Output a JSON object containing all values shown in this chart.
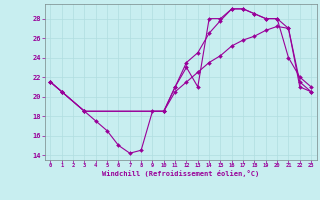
{
  "xlabel": "Windchill (Refroidissement éolien,°C)",
  "bg_color": "#c8eef0",
  "line_color": "#990099",
  "grid_color": "#b0dde0",
  "xlim": [
    -0.5,
    23.5
  ],
  "ylim": [
    13.5,
    29.5
  ],
  "xticks": [
    0,
    1,
    2,
    3,
    4,
    5,
    6,
    7,
    8,
    9,
    10,
    11,
    12,
    13,
    14,
    15,
    16,
    17,
    18,
    19,
    20,
    21,
    22,
    23
  ],
  "yticks": [
    14,
    16,
    18,
    20,
    22,
    24,
    26,
    28
  ],
  "line1_x": [
    0,
    1,
    3,
    4,
    5,
    6,
    7,
    8,
    9,
    10,
    11,
    12,
    13,
    14,
    15,
    16,
    17,
    18,
    19,
    20,
    21,
    22,
    23
  ],
  "line1_y": [
    21.5,
    20.5,
    18.5,
    17.5,
    16.5,
    15.0,
    14.2,
    14.5,
    18.5,
    18.5,
    21.0,
    23.0,
    21.0,
    28.0,
    28.0,
    29.0,
    29.0,
    28.5,
    28.0,
    28.0,
    24.0,
    22.0,
    21.0
  ],
  "line2_x": [
    0,
    1,
    3,
    10,
    11,
    12,
    13,
    14,
    15,
    16,
    17,
    18,
    19,
    20,
    21,
    22,
    23
  ],
  "line2_y": [
    21.5,
    20.5,
    18.5,
    18.5,
    21.0,
    23.5,
    24.5,
    26.5,
    27.8,
    29.0,
    29.0,
    28.5,
    28.0,
    28.0,
    27.0,
    21.5,
    20.5
  ],
  "line3_x": [
    0,
    1,
    3,
    10,
    11,
    12,
    13,
    14,
    15,
    16,
    17,
    18,
    19,
    20,
    21,
    22,
    23
  ],
  "line3_y": [
    21.5,
    20.5,
    18.5,
    18.5,
    20.5,
    21.5,
    22.5,
    23.5,
    24.2,
    25.2,
    25.8,
    26.2,
    26.8,
    27.2,
    27.0,
    21.0,
    20.5
  ]
}
